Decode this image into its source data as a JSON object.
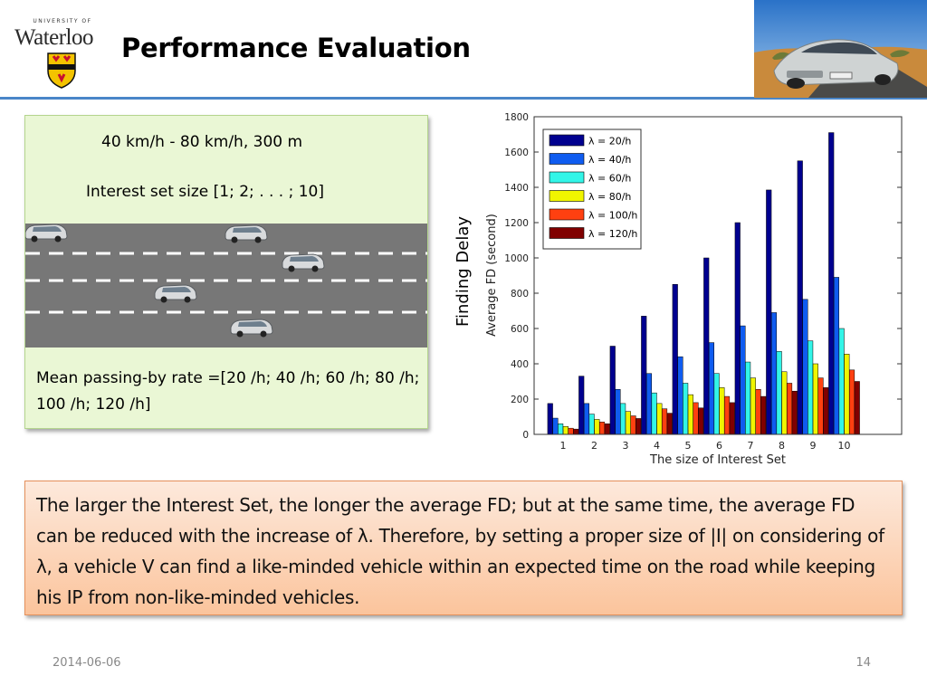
{
  "header": {
    "logo_top_text": "UNIVERSITY OF",
    "logo_name": "Waterloo",
    "title": "Performance Evaluation",
    "rule_color": "#4a86c8"
  },
  "scenario": {
    "speed_range": "40 km/h - 80 km/h, 300 m",
    "interest_set": "Interest set size  [1; 2; . . . ; 10]",
    "mean_rate": "Mean passing-by rate =[20 /h; 40 /h; 60 /h; 80 /h; 100 /h; 120 /h]"
  },
  "chart_data": {
    "type": "bar",
    "side_label": "Finding Delay",
    "ylabel": "Average FD (second)",
    "xlabel": "The size of Interest Set",
    "ylim": [
      0,
      1800
    ],
    "yticks": [
      "0",
      "200",
      "400",
      "600",
      "800",
      "1000",
      "1200",
      "1400",
      "1600",
      "1800"
    ],
    "categories": [
      "1",
      "2",
      "3",
      "4",
      "5",
      "6",
      "7",
      "8",
      "9",
      "10"
    ],
    "legend_position": "top-left",
    "series": [
      {
        "name": "λ = 20/h",
        "color": "#00008f",
        "values": [
          175,
          330,
          500,
          670,
          850,
          1000,
          1200,
          1385,
          1550,
          1710
        ]
      },
      {
        "name": "λ = 40/h",
        "color": "#0f5cf0",
        "values": [
          92,
          175,
          255,
          345,
          440,
          520,
          615,
          690,
          765,
          890
        ]
      },
      {
        "name": "λ = 60/h",
        "color": "#32f5e8",
        "values": [
          60,
          115,
          175,
          235,
          290,
          345,
          410,
          470,
          530,
          600
        ]
      },
      {
        "name": "λ = 80/h",
        "color": "#f0f500",
        "values": [
          45,
          85,
          130,
          175,
          225,
          265,
          320,
          355,
          400,
          455
        ]
      },
      {
        "name": "λ = 100/h",
        "color": "#ff4010",
        "values": [
          35,
          70,
          105,
          145,
          180,
          215,
          255,
          290,
          320,
          365
        ]
      },
      {
        "name": "λ = 120/h",
        "color": "#800000",
        "values": [
          30,
          60,
          90,
          120,
          150,
          180,
          215,
          245,
          265,
          300
        ]
      }
    ]
  },
  "conclusion": {
    "text": "The larger the Interest Set, the longer the average FD; but at the same time, the average FD can be reduced with the increase of λ. Therefore, by setting a proper size of |I| on considering of λ, a vehicle V can find a like-minded vehicle within an expected time on the road while keeping his IP from non-like-minded vehicles."
  },
  "footer": {
    "date": "2014-06-06",
    "page": "14"
  }
}
